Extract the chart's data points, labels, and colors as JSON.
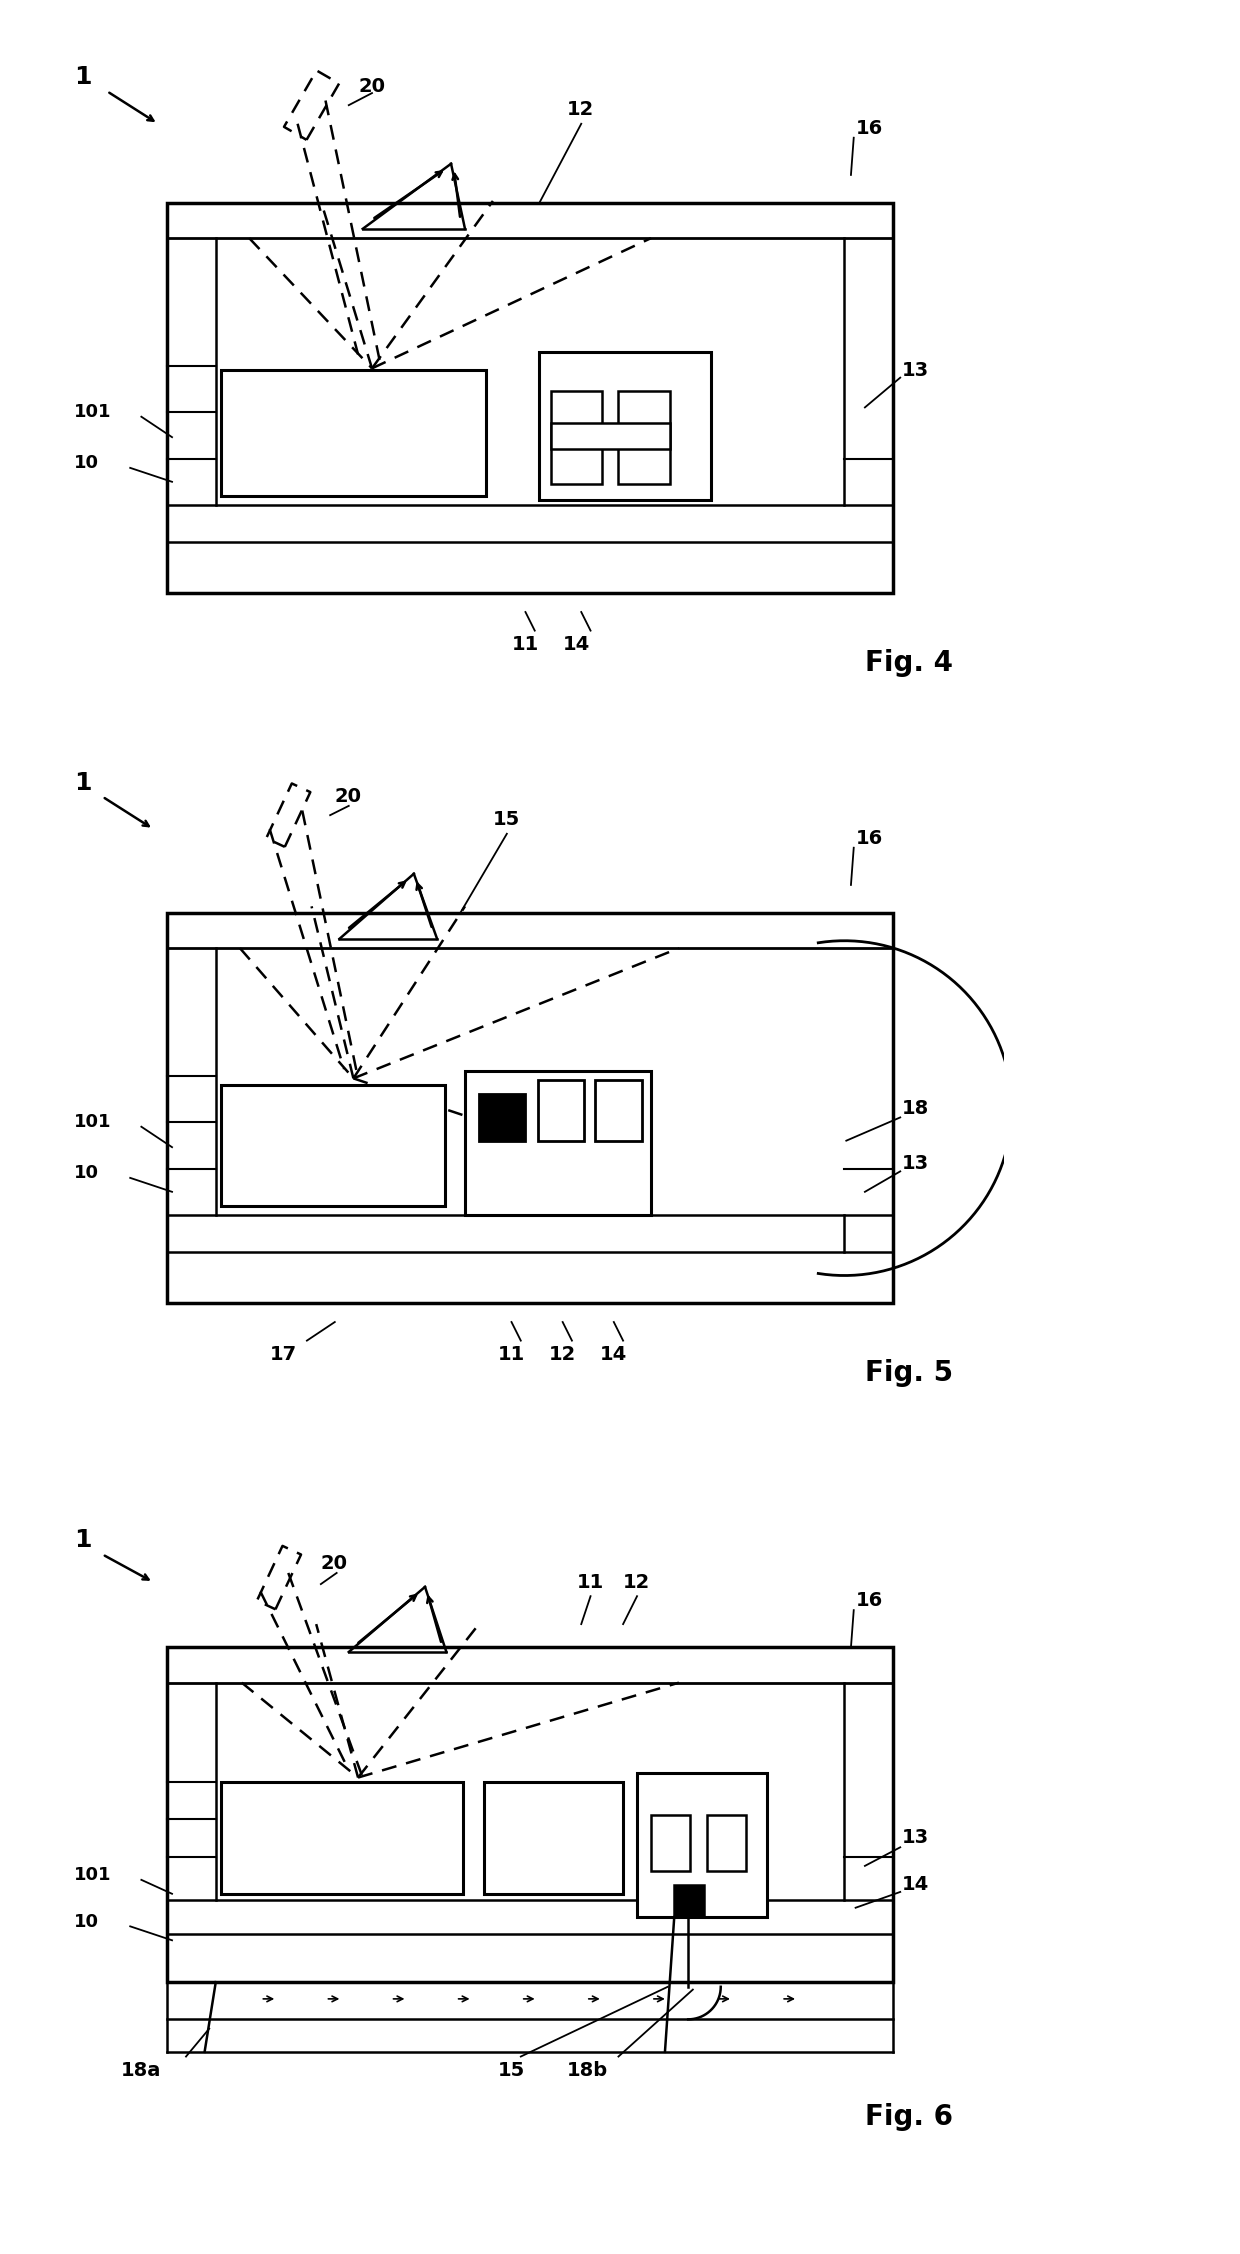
{
  "background_color": "#ffffff",
  "line_color": "#000000",
  "figures": [
    "Fig. 4",
    "Fig. 5",
    "Fig. 6"
  ],
  "fig_label_fontsize": 20,
  "annotation_fontsize": 14,
  "device_label_fontsize": 18
}
